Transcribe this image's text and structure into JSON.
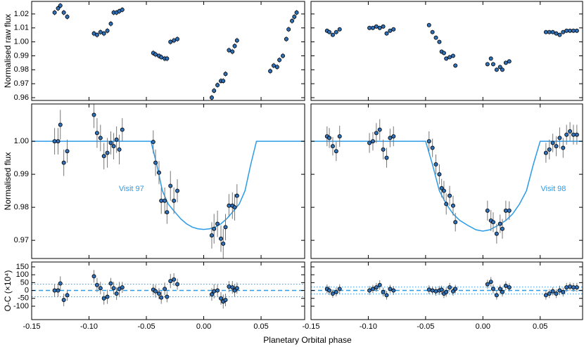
{
  "figure": {
    "xlabel": "Planetary Orbital phase"
  },
  "chart_data": [
    {
      "type": "scatter",
      "ylabel": "Normalised raw flux",
      "xlim": [
        -0.15,
        0.088
      ],
      "ylim": [
        0.958,
        1.029
      ],
      "xticks": [
        {
          "value": -0.15,
          "label": "-0.15"
        },
        {
          "value": -0.1,
          "label": "-0.10"
        },
        {
          "value": -0.05,
          "label": "-0.05"
        },
        {
          "value": 0,
          "label": "0.00"
        },
        {
          "value": 0.05,
          "label": "0.05"
        }
      ],
      "yticks": [
        0.96,
        0.97,
        0.98,
        0.99,
        {
          "value": 1,
          "label": "1.00"
        },
        1.01,
        1.02
      ],
      "xtick_labels": false,
      "ytick_labels": true,
      "color": "#2e6fb5",
      "error_color": "#777777",
      "x": [
        -0.13,
        -0.127,
        -0.125,
        -0.122,
        -0.119,
        -0.0957,
        -0.093,
        -0.09,
        -0.087,
        -0.084,
        -0.081,
        -0.0785,
        -0.076,
        -0.0736,
        -0.071,
        -0.044,
        -0.042,
        -0.039,
        -0.037,
        -0.034,
        -0.032,
        -0.029,
        -0.026,
        -0.023,
        0.007,
        0.009,
        0.012,
        0.015,
        0.017,
        0.019,
        0.022,
        0.025,
        0.027,
        0.029,
        0.058,
        0.061,
        0.064,
        0.066,
        0.069,
        0.072,
        0.074,
        0.077,
        0.079,
        0.081
      ],
      "values": [
        1.021,
        1.024,
        1.026,
        1.021,
        1.018,
        1.006,
        1.005,
        1.007,
        1.006,
        1.008,
        1.013,
        1.021,
        1.021,
        1.022,
        1.023,
        0.992,
        0.991,
        0.99,
        0.989,
        0.988,
        0.988,
        1.0,
        1.001,
        1.002,
        0.96,
        0.965,
        0.969,
        0.972,
        0.972,
        0.977,
        0.994,
        0.993,
        0.997,
        1.001,
        0.979,
        0.983,
        0.982,
        0.987,
        0.99,
        1.002,
        1.009,
        1.015,
        1.018,
        1.021
      ],
      "yerr": 0.002
    },
    {
      "type": "scatter",
      "ylabel": "Normalised flux",
      "xlim": [
        -0.15,
        0.088
      ],
      "ylim": [
        0.9645,
        1.0113
      ],
      "xticks": [
        {
          "value": -0.15,
          "label": "-0.15"
        },
        {
          "value": -0.1,
          "label": "-0.10"
        },
        {
          "value": -0.05,
          "label": "-0.05"
        },
        {
          "value": 0,
          "label": "0.00"
        },
        {
          "value": 0.05,
          "label": "0.05"
        }
      ],
      "yticks": [
        0.97,
        0.98,
        0.99,
        {
          "value": 1,
          "label": "1.00"
        }
      ],
      "xtick_labels": false,
      "ytick_labels": true,
      "color": "#2e6fb5",
      "error_color": "#777777",
      "x": [
        -0.13,
        -0.127,
        -0.125,
        -0.122,
        -0.119,
        -0.0957,
        -0.093,
        -0.09,
        -0.087,
        -0.084,
        -0.081,
        -0.0785,
        -0.076,
        -0.0736,
        -0.071,
        -0.044,
        -0.042,
        -0.039,
        -0.037,
        -0.034,
        -0.032,
        -0.029,
        -0.026,
        -0.023,
        0.007,
        0.009,
        0.012,
        0.015,
        0.017,
        0.019,
        0.022,
        0.025,
        0.027,
        0.029
      ],
      "values": [
        1.0,
        1.0,
        1.005,
        0.9935,
        0.997,
        1.008,
        1.0025,
        1.001,
        0.9955,
        0.9965,
        0.9995,
        0.9985,
        1.0005,
        0.9975,
        1.0035,
        0.9998,
        0.9935,
        0.9905,
        0.982,
        0.982,
        0.9785,
        0.9865,
        0.982,
        0.985,
        0.9715,
        0.9735,
        0.975,
        0.9705,
        0.969,
        0.974,
        0.9805,
        0.9805,
        0.98,
        0.9835
      ],
      "errors": [
        0.004,
        0.004,
        0.0045,
        0.004,
        0.0035,
        0.004,
        0.0045,
        0.004,
        0.004,
        0.0045,
        0.0035,
        0.004,
        0.004,
        0.0045,
        0.0035,
        0.0035,
        0.004,
        0.0035,
        0.004,
        0.004,
        0.0035,
        0.0045,
        0.004,
        0.0035,
        0.004,
        0.0045,
        0.004,
        0.004,
        0.0045,
        0.004,
        0.0035,
        0.004,
        0.004,
        0.0035
      ],
      "model": {
        "color": "#2b9be8",
        "x": [
          -0.15,
          -0.046,
          -0.041,
          -0.036,
          -0.031,
          -0.025,
          -0.02,
          -0.015,
          -0.01,
          -0.005,
          0,
          0.005,
          0.01,
          0.015,
          0.02,
          0.025,
          0.031,
          0.036,
          0.041,
          0.046,
          0.088
        ],
        "values": [
          1.0,
          1.0,
          0.993,
          0.985,
          0.981,
          0.9785,
          0.9765,
          0.975,
          0.974,
          0.9735,
          0.9733,
          0.9735,
          0.974,
          0.975,
          0.9765,
          0.9785,
          0.981,
          0.985,
          0.993,
          1.0,
          1.0
        ]
      },
      "annotation": {
        "text": "Visit 97",
        "x": -0.074,
        "y": 0.9855,
        "color": "#2b9be8"
      }
    },
    {
      "type": "scatter",
      "ylabel": "O-C (×10⁴)",
      "xlim": [
        -0.15,
        0.088
      ],
      "ylim": [
        -185,
        181
      ],
      "xticks": [
        {
          "value": -0.15,
          "label": "-0.15"
        },
        {
          "value": -0.1,
          "label": "-0.10"
        },
        {
          "value": -0.05,
          "label": "-0.05"
        },
        {
          "value": 0,
          "label": "0.00"
        },
        {
          "value": 0.05,
          "label": "0.05"
        }
      ],
      "yticks": [
        -100,
        -50,
        0,
        50,
        100,
        150
      ],
      "xtick_labels": true,
      "ytick_labels": true,
      "color": "#2e6fb5",
      "error_color": "#777777",
      "hlines": [
        {
          "value": 0,
          "style": "dashed"
        },
        {
          "value": 40,
          "style": "dotted"
        },
        {
          "value": -40,
          "style": "dotted"
        }
      ],
      "hline_color": "#2b9be8",
      "x": [
        -0.13,
        -0.127,
        -0.125,
        -0.122,
        -0.119,
        -0.0957,
        -0.093,
        -0.09,
        -0.087,
        -0.084,
        -0.081,
        -0.0785,
        -0.076,
        -0.0736,
        -0.071,
        -0.044,
        -0.042,
        -0.039,
        -0.037,
        -0.034,
        -0.032,
        -0.029,
        -0.026,
        -0.023,
        0.007,
        0.009,
        0.012,
        0.015,
        0.017,
        0.019,
        0.022,
        0.025,
        0.027,
        0.029
      ],
      "values": [
        0,
        0,
        45,
        -60,
        -30,
        90,
        35,
        15,
        -50,
        -40,
        45,
        15,
        -20,
        10,
        20,
        5,
        -5,
        -20,
        -45,
        10,
        -40,
        60,
        70,
        40,
        -25,
        -5,
        0,
        -50,
        -70,
        -60,
        25,
        20,
        0,
        15
      ],
      "errors": [
        40,
        40,
        45,
        40,
        35,
        40,
        45,
        40,
        40,
        45,
        35,
        40,
        40,
        45,
        35,
        35,
        40,
        35,
        40,
        40,
        35,
        45,
        40,
        35,
        40,
        45,
        40,
        40,
        45,
        40,
        35,
        40,
        40,
        35
      ]
    },
    {
      "type": "scatter",
      "xlim": [
        -0.15,
        0.087
      ],
      "ylim": [
        0.958,
        1.029
      ],
      "xticks": [
        {
          "value": -0.15,
          "label": "-0.15"
        },
        {
          "value": -0.1,
          "label": "-0.10"
        },
        {
          "value": -0.05,
          "label": "-0.05"
        },
        {
          "value": 0,
          "label": "0.00"
        },
        {
          "value": 0.05,
          "label": "0.05"
        }
      ],
      "yticks": [
        0.96,
        0.97,
        0.98,
        0.99,
        1,
        1.01,
        1.02
      ],
      "xtick_labels": false,
      "ytick_labels": false,
      "color": "#2e6fb5",
      "error_color": "#777777",
      "x": [
        -0.136,
        -0.134,
        -0.131,
        -0.128,
        -0.125,
        -0.099,
        -0.096,
        -0.093,
        -0.09,
        -0.087,
        -0.084,
        -0.081,
        -0.078,
        -0.047,
        -0.044,
        -0.041,
        -0.038,
        -0.036,
        -0.034,
        -0.032,
        -0.029,
        -0.026,
        -0.024,
        0.004,
        0.007,
        0.009,
        0.012,
        0.015,
        0.017,
        0.02,
        0.023,
        0.055,
        0.058,
        0.061,
        0.064,
        0.067,
        0.07,
        0.073,
        0.076,
        0.079,
        0.082
      ],
      "values": [
        1.008,
        1.007,
        1.005,
        1.007,
        1.009,
        1.01,
        1.01,
        1.011,
        1.01,
        1.011,
        1.006,
        1.008,
        1.009,
        1.012,
        1.007,
        1.003,
        1.0,
        0.993,
        0.992,
        0.988,
        0.989,
        0.99,
        0.983,
        0.984,
        0.988,
        0.984,
        0.98,
        0.982,
        0.98,
        0.985,
        0.986,
        1.007,
        1.007,
        1.007,
        1.006,
        1.005,
        1.007,
        1.008,
        1.008,
        1.008,
        1.008
      ],
      "yerr": 0.0015
    },
    {
      "type": "scatter",
      "xlim": [
        -0.15,
        0.087
      ],
      "ylim": [
        0.9645,
        1.0113
      ],
      "xticks": [
        {
          "value": -0.15,
          "label": "-0.15"
        },
        {
          "value": -0.1,
          "label": "-0.10"
        },
        {
          "value": -0.05,
          "label": "-0.05"
        },
        {
          "value": 0,
          "label": "0.00"
        },
        {
          "value": 0.05,
          "label": "0.05"
        }
      ],
      "yticks": [
        0.97,
        0.98,
        0.99,
        1
      ],
      "xtick_labels": false,
      "ytick_labels": false,
      "color": "#2e6fb5",
      "error_color": "#777777",
      "x": [
        -0.136,
        -0.134,
        -0.131,
        -0.128,
        -0.125,
        -0.099,
        -0.096,
        -0.093,
        -0.09,
        -0.087,
        -0.084,
        -0.081,
        -0.078,
        -0.047,
        -0.044,
        -0.041,
        -0.038,
        -0.036,
        -0.034,
        -0.032,
        -0.029,
        -0.026,
        -0.024,
        0.004,
        0.007,
        0.009,
        0.012,
        0.015,
        0.017,
        0.02,
        0.023,
        0.055,
        0.058,
        0.061,
        0.064,
        0.067,
        0.07,
        0.073,
        0.076,
        0.079,
        0.082
      ],
      "values": [
        1.0015,
        1.001,
        0.9985,
        0.997,
        1.0015,
        0.9995,
        1.0,
        1.0025,
        1.0035,
        0.9975,
        0.995,
        1.001,
        1.0015,
        1.0,
        0.998,
        0.993,
        0.99,
        0.9858,
        0.985,
        0.981,
        0.9835,
        0.9805,
        0.9755,
        0.979,
        0.976,
        0.9755,
        0.972,
        0.975,
        0.9735,
        0.979,
        0.979,
        0.9965,
        0.9975,
        0.9995,
        0.9985,
        1.001,
        0.998,
        1.002,
        1.003,
        1.002,
        1.002
      ],
      "errors": [
        0.003,
        0.003,
        0.0028,
        0.003,
        0.0032,
        0.003,
        0.0028,
        0.003,
        0.0032,
        0.003,
        0.003,
        0.0028,
        0.003,
        0.003,
        0.0028,
        0.003,
        0.003,
        0.0028,
        0.003,
        0.0032,
        0.003,
        0.003,
        0.0028,
        0.003,
        0.0032,
        0.003,
        0.003,
        0.0028,
        0.003,
        0.003,
        0.0028,
        0.003,
        0.003,
        0.0028,
        0.003,
        0.0032,
        0.003,
        0.003,
        0.0028,
        0.003,
        0.003
      ],
      "model": {
        "color": "#2b9be8",
        "x": [
          -0.15,
          -0.05,
          -0.044,
          -0.038,
          -0.032,
          -0.026,
          -0.02,
          -0.013,
          -0.006,
          0,
          0.006,
          0.013,
          0.02,
          0.026,
          0.032,
          0.038,
          0.044,
          0.05,
          0.087
        ],
        "values": [
          1.0,
          1.0,
          0.993,
          0.985,
          0.981,
          0.978,
          0.976,
          0.9745,
          0.9732,
          0.9728,
          0.9732,
          0.9745,
          0.976,
          0.978,
          0.981,
          0.985,
          0.993,
          1.0,
          1.0
        ]
      },
      "annotation": {
        "text": "Visit 98",
        "x": 0.0505,
        "y": 0.9855,
        "color": "#2b9be8"
      }
    },
    {
      "type": "scatter",
      "xlim": [
        -0.15,
        0.087
      ],
      "ylim": [
        -185,
        181
      ],
      "xticks": [
        {
          "value": -0.15,
          "label": "-0.15"
        },
        {
          "value": -0.1,
          "label": "-0.10"
        },
        {
          "value": -0.05,
          "label": "-0.05"
        },
        {
          "value": 0,
          "label": "0.00"
        },
        {
          "value": 0.05,
          "label": "0.05"
        }
      ],
      "yticks": [
        -100,
        -50,
        0,
        50,
        100,
        150
      ],
      "xtick_labels": true,
      "ytick_labels": false,
      "color": "#2e6fb5",
      "error_color": "#777777",
      "hlines": [
        {
          "value": 0,
          "style": "dashed"
        },
        {
          "value": 22,
          "style": "dotted"
        },
        {
          "value": -22,
          "style": "dotted"
        }
      ],
      "hline_color": "#2b9be8",
      "x": [
        -0.136,
        -0.134,
        -0.131,
        -0.128,
        -0.125,
        -0.099,
        -0.096,
        -0.093,
        -0.09,
        -0.087,
        -0.084,
        -0.081,
        -0.078,
        -0.047,
        -0.044,
        -0.041,
        -0.038,
        -0.036,
        -0.034,
        -0.032,
        -0.029,
        -0.026,
        -0.024,
        0.004,
        0.007,
        0.009,
        0.012,
        0.015,
        0.017,
        0.02,
        0.023,
        0.055,
        0.058,
        0.061,
        0.064,
        0.067,
        0.07,
        0.073,
        0.076,
        0.079,
        0.082
      ],
      "values": [
        10,
        0,
        -20,
        -10,
        10,
        0,
        10,
        20,
        35,
        -10,
        -30,
        10,
        0,
        5,
        0,
        -5,
        0,
        5,
        -20,
        -10,
        20,
        -5,
        10,
        40,
        55,
        10,
        -30,
        10,
        -10,
        30,
        20,
        -30,
        -20,
        -5,
        -20,
        0,
        -10,
        20,
        25,
        20,
        20
      ],
      "errors": [
        28,
        28,
        26,
        28,
        30,
        28,
        26,
        28,
        30,
        28,
        28,
        26,
        28,
        28,
        26,
        28,
        28,
        26,
        28,
        30,
        28,
        28,
        26,
        28,
        30,
        28,
        28,
        26,
        28,
        28,
        26,
        28,
        28,
        26,
        28,
        30,
        28,
        28,
        26,
        28,
        28
      ]
    }
  ]
}
